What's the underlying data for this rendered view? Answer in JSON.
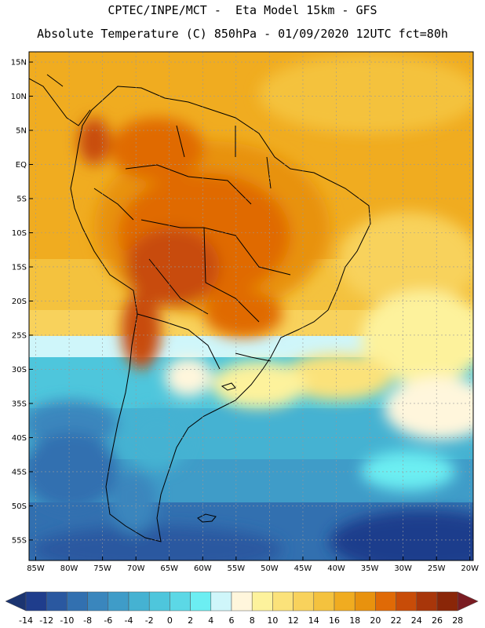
{
  "header": {
    "line1": "CPTEC/INPE/MCT -  Eta Model 15km - GFS",
    "line2": "Absolute Temperature (C) 850hPa - 01/09/2020 12UTC fct=80h"
  },
  "map": {
    "lat_labels": [
      "15N",
      "10N",
      "5N",
      "EQ",
      "5S",
      "10S",
      "15S",
      "20S",
      "25S",
      "30S",
      "35S",
      "40S",
      "45S",
      "50S",
      "55S"
    ],
    "lon_labels": [
      "85W",
      "80W",
      "75W",
      "70W",
      "65W",
      "60W",
      "55W",
      "50W",
      "45W",
      "40W",
      "35W",
      "30W",
      "25W",
      "20W"
    ],
    "lat_values": [
      15,
      10,
      5,
      0,
      -5,
      -10,
      -15,
      -20,
      -25,
      -30,
      -35,
      -40,
      -45,
      -50,
      -55
    ],
    "lon_values": [
      -85,
      -80,
      -75,
      -70,
      -65,
      -60,
      -55,
      -50,
      -45,
      -40,
      -35,
      -30,
      -25,
      -20
    ],
    "lat_range": [
      -58,
      16.5
    ],
    "lon_range": [
      -86,
      -19.5
    ]
  },
  "colorbar": {
    "labels": [
      "-14",
      "-12",
      "-10",
      "-8",
      "-6",
      "-4",
      "-2",
      "0",
      "2",
      "4",
      "6",
      "8",
      "10",
      "12",
      "14",
      "16",
      "18",
      "20",
      "22",
      "24",
      "26",
      "28"
    ],
    "colors": [
      "#1f3d8c",
      "#2a58a0",
      "#3270b0",
      "#3a86bd",
      "#3f9cc8",
      "#45b2d2",
      "#4ec6dc",
      "#5cd8e6",
      "#6ceef2",
      "#cff6fa",
      "#fff6dc",
      "#fdf29c",
      "#fbe27a",
      "#f8d25c",
      "#f4c23e",
      "#f0ac20",
      "#e8920e",
      "#e06a06",
      "#c84c08",
      "#a8360a",
      "#8a2608"
    ],
    "under_color": "#1b3470",
    "over_color": "#7a1c22"
  }
}
